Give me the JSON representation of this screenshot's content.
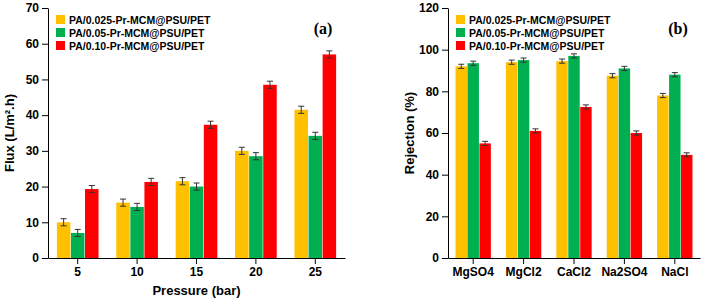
{
  "chart_data": [
    {
      "type": "bar",
      "title": "(a)",
      "x_label": "Pressure (bar)",
      "y_label": "Flux (L/m².h)",
      "categories": [
        5,
        10,
        15,
        20,
        25
      ],
      "series": [
        {
          "name": "PA/0.025-Pr-MCM@PSU/PET",
          "color": "#FFC000",
          "values": [
            10,
            15.5,
            21.5,
            30,
            41.5
          ],
          "errors": [
            1,
            1,
            1,
            1,
            1
          ]
        },
        {
          "name": "PA/0.05-Pr-MCM@PSU/PET",
          "color": "#00B050",
          "values": [
            7,
            14.3,
            20,
            28.5,
            34.2
          ],
          "errors": [
            1,
            1,
            1,
            1,
            1
          ]
        },
        {
          "name": "PA/0.10-Pr-MCM@PSU/PET",
          "color": "#FF0000",
          "values": [
            19.3,
            21.3,
            37.3,
            48.5,
            57
          ],
          "errors": [
            1,
            1,
            1,
            1,
            1
          ]
        }
      ],
      "ylim": [
        0,
        70
      ],
      "yticks": [
        0,
        10,
        20,
        30,
        40,
        50,
        60,
        70
      ],
      "grid": false,
      "legend": "upper left"
    },
    {
      "type": "bar",
      "title": "(b)",
      "y_label": "Rejection (%)",
      "categories": [
        "MgSO4",
        "MgCl2",
        "CaCl2",
        "Na2SO4",
        "NaCl"
      ],
      "series": [
        {
          "name": "PA/0.025-Pr-MCM@PSU/PET",
          "color": "#FFC000",
          "values": [
            92,
            94,
            94.5,
            87.5,
            78
          ],
          "errors": [
            1,
            1,
            1,
            1,
            1
          ]
        },
        {
          "name": "PA/0.05-Pr-MCM@PSU/PET",
          "color": "#00B050",
          "values": [
            93.5,
            95,
            97,
            91,
            88
          ],
          "errors": [
            1,
            1,
            1,
            1,
            1
          ]
        },
        {
          "name": "PA/0.10-Pr-MCM@PSU/PET",
          "color": "#FF0000",
          "values": [
            55,
            61,
            72.5,
            60,
            49.5
          ],
          "errors": [
            1,
            1,
            1,
            1,
            1
          ]
        }
      ],
      "ylim": [
        0,
        120
      ],
      "yticks": [
        0,
        20,
        40,
        60,
        80,
        100,
        120
      ],
      "grid": false,
      "legend": "upper left"
    }
  ]
}
